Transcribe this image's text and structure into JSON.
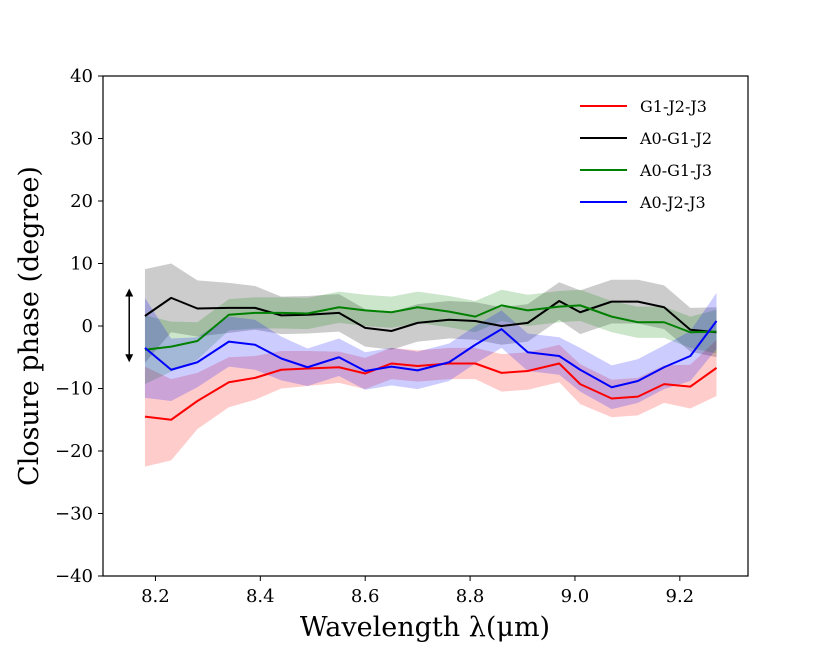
{
  "chart_data": {
    "type": "line",
    "title": "",
    "xlabel": "Wavelength λ(μm)",
    "ylabel": "Closure phase (degree)",
    "xlim": [
      8.1,
      9.33
    ],
    "ylim": [
      -40,
      40
    ],
    "xticks": [
      8.2,
      8.4,
      8.6,
      8.8,
      9.0,
      9.2
    ],
    "xtick_labels": [
      "8.2",
      "8.4",
      "8.6",
      "8.8",
      "9.0",
      "9.2"
    ],
    "yticks": [
      -40,
      -30,
      -20,
      -10,
      0,
      10,
      20,
      30,
      40
    ],
    "ytick_labels": [
      "−40",
      "−30",
      "−20",
      "−10",
      "0",
      "10",
      "20",
      "30",
      "40"
    ],
    "legend_position": "top-right",
    "x": [
      8.18,
      8.23,
      8.28,
      8.34,
      8.39,
      8.44,
      8.49,
      8.55,
      8.6,
      8.65,
      8.7,
      8.76,
      8.81,
      8.86,
      8.91,
      8.97,
      9.01,
      9.07,
      9.12,
      9.17,
      9.22,
      9.27
    ],
    "series": [
      {
        "name": "G1-J2-J3",
        "color": "#ff0000",
        "values": [
          -14.5,
          -15.0,
          -12.0,
          -9.0,
          -8.3,
          -7.0,
          -6.8,
          -6.6,
          -7.6,
          -6.0,
          -6.4,
          -6.0,
          -6.0,
          -7.5,
          -7.2,
          -6.0,
          -9.3,
          -11.6,
          -11.3,
          -9.3,
          -9.7,
          -6.7
        ],
        "band_halfwidth": [
          8.0,
          6.5,
          4.5,
          4.0,
          3.5,
          3.0,
          2.8,
          2.5,
          2.5,
          2.5,
          2.5,
          2.5,
          2.5,
          3.0,
          3.0,
          3.0,
          3.2,
          3.0,
          3.0,
          3.0,
          3.5,
          4.5
        ]
      },
      {
        "name": "A0-G1-J2",
        "color": "#000000",
        "values": [
          1.6,
          4.5,
          2.8,
          2.9,
          2.9,
          1.7,
          1.8,
          2.1,
          -0.3,
          -0.8,
          0.5,
          1.0,
          0.8,
          0.0,
          0.5,
          4.0,
          2.2,
          3.9,
          3.9,
          3.0,
          -0.6,
          -1.0
        ],
        "band_halfwidth": [
          7.5,
          5.5,
          4.5,
          4.0,
          3.5,
          3.0,
          3.0,
          3.0,
          3.0,
          3.0,
          3.0,
          3.0,
          3.0,
          3.0,
          3.0,
          3.0,
          3.5,
          3.5,
          3.5,
          3.5,
          3.5,
          4.0
        ]
      },
      {
        "name": "A0-G1-J3",
        "color": "#008000",
        "values": [
          -3.8,
          -3.3,
          -2.4,
          1.8,
          2.1,
          2.1,
          2.0,
          3.0,
          2.5,
          2.2,
          3.0,
          2.3,
          1.5,
          3.3,
          2.5,
          3.1,
          3.3,
          1.5,
          0.6,
          0.6,
          -1.0,
          -0.9
        ],
        "band_halfwidth": [
          5.5,
          4.0,
          3.0,
          2.5,
          2.5,
          2.5,
          2.5,
          2.5,
          2.5,
          2.5,
          2.5,
          2.5,
          2.5,
          2.5,
          2.5,
          2.5,
          2.5,
          2.5,
          2.5,
          2.5,
          2.5,
          3.5
        ]
      },
      {
        "name": "A0-J2-J3",
        "color": "#0000ff",
        "values": [
          -3.5,
          -7.0,
          -5.8,
          -2.5,
          -3.0,
          -5.2,
          -6.6,
          -5.0,
          -7.2,
          -6.5,
          -7.1,
          -5.8,
          -3.0,
          -0.5,
          -4.2,
          -4.8,
          -7.0,
          -9.8,
          -8.8,
          -6.6,
          -4.8,
          0.8
        ],
        "band_halfwidth": [
          8.0,
          5.0,
          4.0,
          4.0,
          4.0,
          3.5,
          3.0,
          3.0,
          3.0,
          3.0,
          3.0,
          3.0,
          3.0,
          3.0,
          3.0,
          3.0,
          3.5,
          3.5,
          3.5,
          3.5,
          4.0,
          4.5
        ]
      }
    ],
    "annotation": {
      "type": "double-arrow",
      "x": 8.15,
      "y_from": -5.8,
      "y_to": 6.0
    }
  }
}
